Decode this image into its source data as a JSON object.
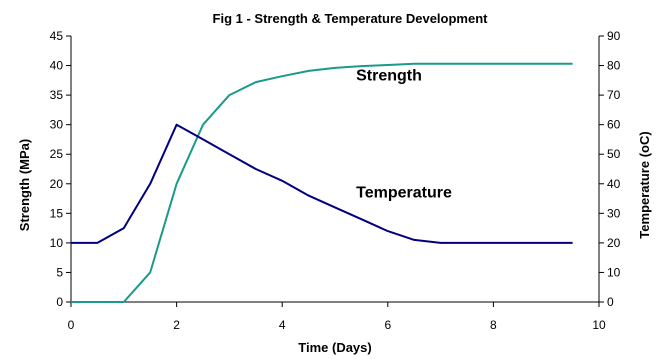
{
  "chart_data": {
    "type": "line",
    "title": "Fig 1 - Strength & Temperature Development",
    "xlabel": "Time (Days)",
    "ylabel_left": "Strength (MPa)",
    "ylabel_right": "Temperature (oC)",
    "xlim": [
      0,
      10
    ],
    "ylim_left": [
      0,
      45
    ],
    "ylim_right": [
      0,
      90
    ],
    "x_ticks": [
      0,
      2,
      4,
      6,
      8,
      10
    ],
    "y_ticks_left": [
      0,
      5,
      10,
      15,
      20,
      25,
      30,
      35,
      40,
      45
    ],
    "y_ticks_right": [
      0,
      10,
      20,
      30,
      40,
      50,
      60,
      70,
      80,
      90
    ],
    "grid": false,
    "legend": "none",
    "colors": {
      "strength": "#1a9a8a",
      "temperature": "#000080"
    },
    "series": [
      {
        "axis": "left",
        "x": [
          0,
          0.5,
          1,
          1.5,
          2,
          2.5,
          3,
          3.5,
          4,
          4.5,
          5,
          5.5,
          6,
          6.5,
          7,
          7.5,
          8,
          8.5,
          9,
          9.5
        ],
        "values": [
          0,
          0,
          0,
          5,
          20,
          30,
          35,
          37.2,
          38.2,
          39.1,
          39.6,
          39.9,
          40.1,
          40.3,
          40.3,
          40.3,
          40.3,
          40.3,
          40.3,
          40.3
        ]
      },
      {
        "axis": "right",
        "x": [
          0,
          0.5,
          1,
          1.5,
          2,
          2.5,
          3,
          3.5,
          4,
          4.5,
          5,
          5.5,
          6,
          6.5,
          7,
          7.5,
          8,
          8.5,
          9,
          9.5
        ],
        "values": [
          20,
          20,
          25,
          40,
          60,
          55,
          50,
          45,
          41,
          36,
          32,
          28,
          24,
          21,
          20,
          20,
          20,
          20,
          20,
          20
        ]
      }
    ],
    "annotations": [
      {
        "text": "Strength",
        "x": 5.4,
        "y_left": 37.5
      },
      {
        "text": "Temperature",
        "x": 5.4,
        "y_left": 17.7
      }
    ]
  }
}
